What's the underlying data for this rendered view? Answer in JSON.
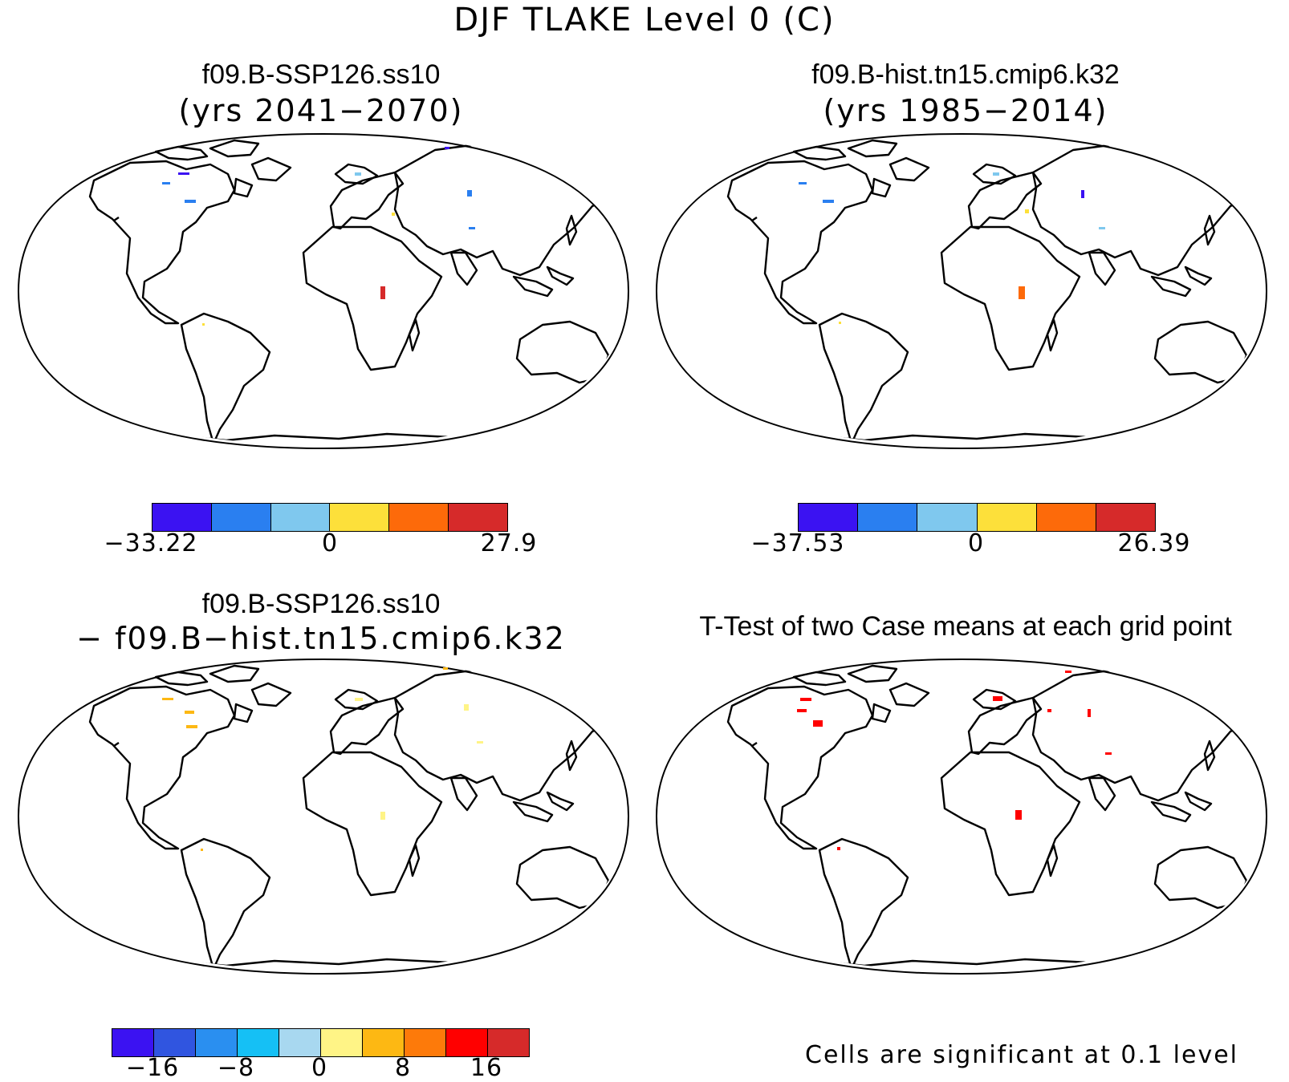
{
  "title": "DJF TLAKE Level 0 (C)",
  "panels": [
    {
      "id": "p1",
      "title": "f09.B-SSP126.ss10",
      "subtitle": "(yrs 2041−2070)"
    },
    {
      "id": "p2",
      "title": "f09.B-hist.tn15.cmip6.k32",
      "subtitle": "(yrs 1985−2014)"
    },
    {
      "id": "p3",
      "title": "f09.B-SSP126.ss10",
      "subtitle": "− f09.B−hist.tn15.cmip6.k32"
    },
    {
      "id": "p4",
      "title": "T-Test of two Case means at each grid point",
      "subtitle": ""
    }
  ],
  "colorbars": {
    "cb1": {
      "colors": [
        "#3b12f2",
        "#2a7ff0",
        "#7fc8ee",
        "#fde03a",
        "#fd6a0a",
        "#d62a2a"
      ],
      "labels": [
        "−33.22",
        "0",
        "27.9"
      ]
    },
    "cb2": {
      "colors": [
        "#3b12f2",
        "#2a7ff0",
        "#7fc8ee",
        "#fde03a",
        "#fd6a0a",
        "#d62a2a"
      ],
      "labels": [
        "−37.53",
        "0",
        "26.39"
      ]
    },
    "cb3": {
      "colors": [
        "#3b12f2",
        "#3055e0",
        "#2a8ff0",
        "#15c0f5",
        "#a8d8f0",
        "#fff486",
        "#fdb813",
        "#fd7a0a",
        "#ff0000",
        "#d62a2a"
      ],
      "labels": [
        "−16",
        "−8",
        "0",
        "8",
        "16"
      ]
    }
  },
  "significance_note": "Cells are significant at 0.1 level"
}
